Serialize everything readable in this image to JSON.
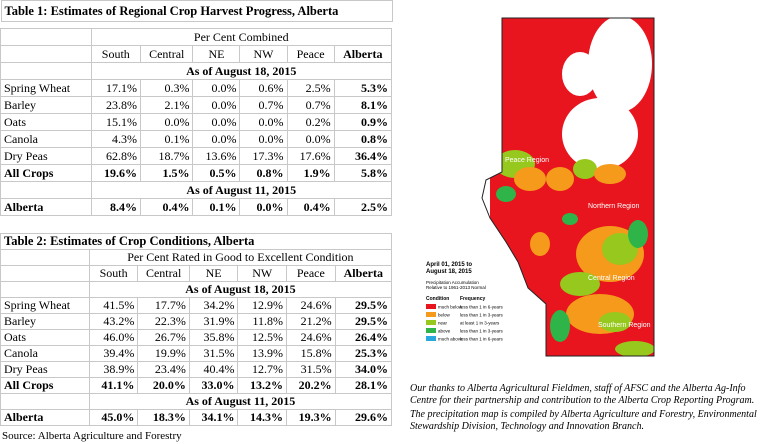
{
  "table1": {
    "title": "Table 1: Estimates of Regional Crop Harvest Progress, Alberta",
    "subtitle": "Per Cent Combined",
    "columns": [
      "",
      "South",
      "Central",
      "NE",
      "NW",
      "Peace",
      "Alberta"
    ],
    "section1": "As of August 18, 2015",
    "rows": [
      {
        "label": "Spring Wheat",
        "values": [
          "17.1%",
          "0.3%",
          "0.0%",
          "0.6%",
          "2.5%",
          "5.3%"
        ]
      },
      {
        "label": "Barley",
        "values": [
          "23.8%",
          "2.1%",
          "0.0%",
          "0.7%",
          "0.7%",
          "8.1%"
        ]
      },
      {
        "label": "Oats",
        "values": [
          "15.1%",
          "0.0%",
          "0.0%",
          "0.0%",
          "0.2%",
          "0.9%"
        ]
      },
      {
        "label": "Canola",
        "values": [
          "4.3%",
          "0.1%",
          "0.0%",
          "0.0%",
          "0.0%",
          "0.8%"
        ]
      },
      {
        "label": "Dry Peas",
        "values": [
          "62.8%",
          "18.7%",
          "13.6%",
          "17.3%",
          "17.6%",
          "36.4%"
        ]
      }
    ],
    "total": {
      "label": "All Crops",
      "values": [
        "19.6%",
        "1.5%",
        "0.5%",
        "0.8%",
        "1.9%",
        "5.8%"
      ]
    },
    "section2": "As of August 11, 2015",
    "prev": {
      "label": "Alberta",
      "values": [
        "8.4%",
        "0.4%",
        "0.1%",
        "0.0%",
        "0.4%",
        "2.5%"
      ]
    }
  },
  "table2": {
    "title": "Table 2: Estimates of Crop Conditions, Alberta",
    "subtitle": "Per Cent Rated in Good to Excellent Condition",
    "columns": [
      "",
      "South",
      "Central",
      "NE",
      "NW",
      "Peace",
      "Alberta"
    ],
    "section1": "As of August 18, 2015",
    "rows": [
      {
        "label": "Spring Wheat",
        "values": [
          "41.5%",
          "17.7%",
          "34.2%",
          "12.9%",
          "24.6%",
          "29.5%"
        ]
      },
      {
        "label": "Barley",
        "values": [
          "43.2%",
          "22.3%",
          "31.9%",
          "11.8%",
          "21.2%",
          "29.5%"
        ]
      },
      {
        "label": "Oats",
        "values": [
          "46.0%",
          "26.7%",
          "35.8%",
          "12.5%",
          "24.6%",
          "26.4%"
        ]
      },
      {
        "label": "Canola",
        "values": [
          "39.4%",
          "19.9%",
          "31.5%",
          "13.9%",
          "15.8%",
          "25.3%"
        ]
      },
      {
        "label": "Dry Peas",
        "values": [
          "38.9%",
          "23.4%",
          "40.4%",
          "12.7%",
          "31.5%",
          "34.0%"
        ]
      }
    ],
    "total": {
      "label": "All Crops",
      "values": [
        "41.1%",
        "20.0%",
        "33.0%",
        "13.2%",
        "20.2%",
        "28.1%"
      ]
    },
    "section2": "As of August 11, 2015",
    "prev": {
      "label": "Alberta",
      "values": [
        "45.0%",
        "18.3%",
        "34.1%",
        "14.3%",
        "19.3%",
        "29.6%"
      ]
    }
  },
  "source": "Source: Alberta Agriculture and Forestry",
  "map": {
    "regions": [
      "Peace Region",
      "Northern Region",
      "Central Region",
      "Southern Region"
    ],
    "legend_title": "April 01, 2015 to\nAugust 18, 2015",
    "legend_sub": "Precipitation Accumulation\nRelative to 1961-2013 Normal",
    "legend_head": [
      "Condition",
      "Frequency"
    ],
    "legend": [
      {
        "label": "much below",
        "freq": "less than 1 in 6-years",
        "color": "#e8141e"
      },
      {
        "label": "below",
        "freq": "less than 1 in 3-years",
        "color": "#f59a1b"
      },
      {
        "label": "near",
        "freq": "at least 1 in 3-years",
        "color": "#96c81e"
      },
      {
        "label": "above",
        "freq": "less than 1 in 3-years",
        "color": "#2fb44a"
      },
      {
        "label": "much above",
        "freq": "less than 1 in 6-years",
        "color": "#29a8e0"
      }
    ],
    "colors": {
      "much_below": "#e8141e",
      "below": "#f59a1b",
      "near": "#96c81e",
      "above": "#2fb44a",
      "bg": "#ffffff"
    }
  },
  "credits": [
    "Our thanks to Alberta Agricultural Fieldmen, staff of AFSC and the Alberta Ag-Info Centre for their partnership and contribution to the Alberta Crop Reporting Program.",
    "The precipitation map is compiled by Alberta Agriculture and Forestry, Environmental Stewardship Division, Technology and Innovation Branch."
  ]
}
